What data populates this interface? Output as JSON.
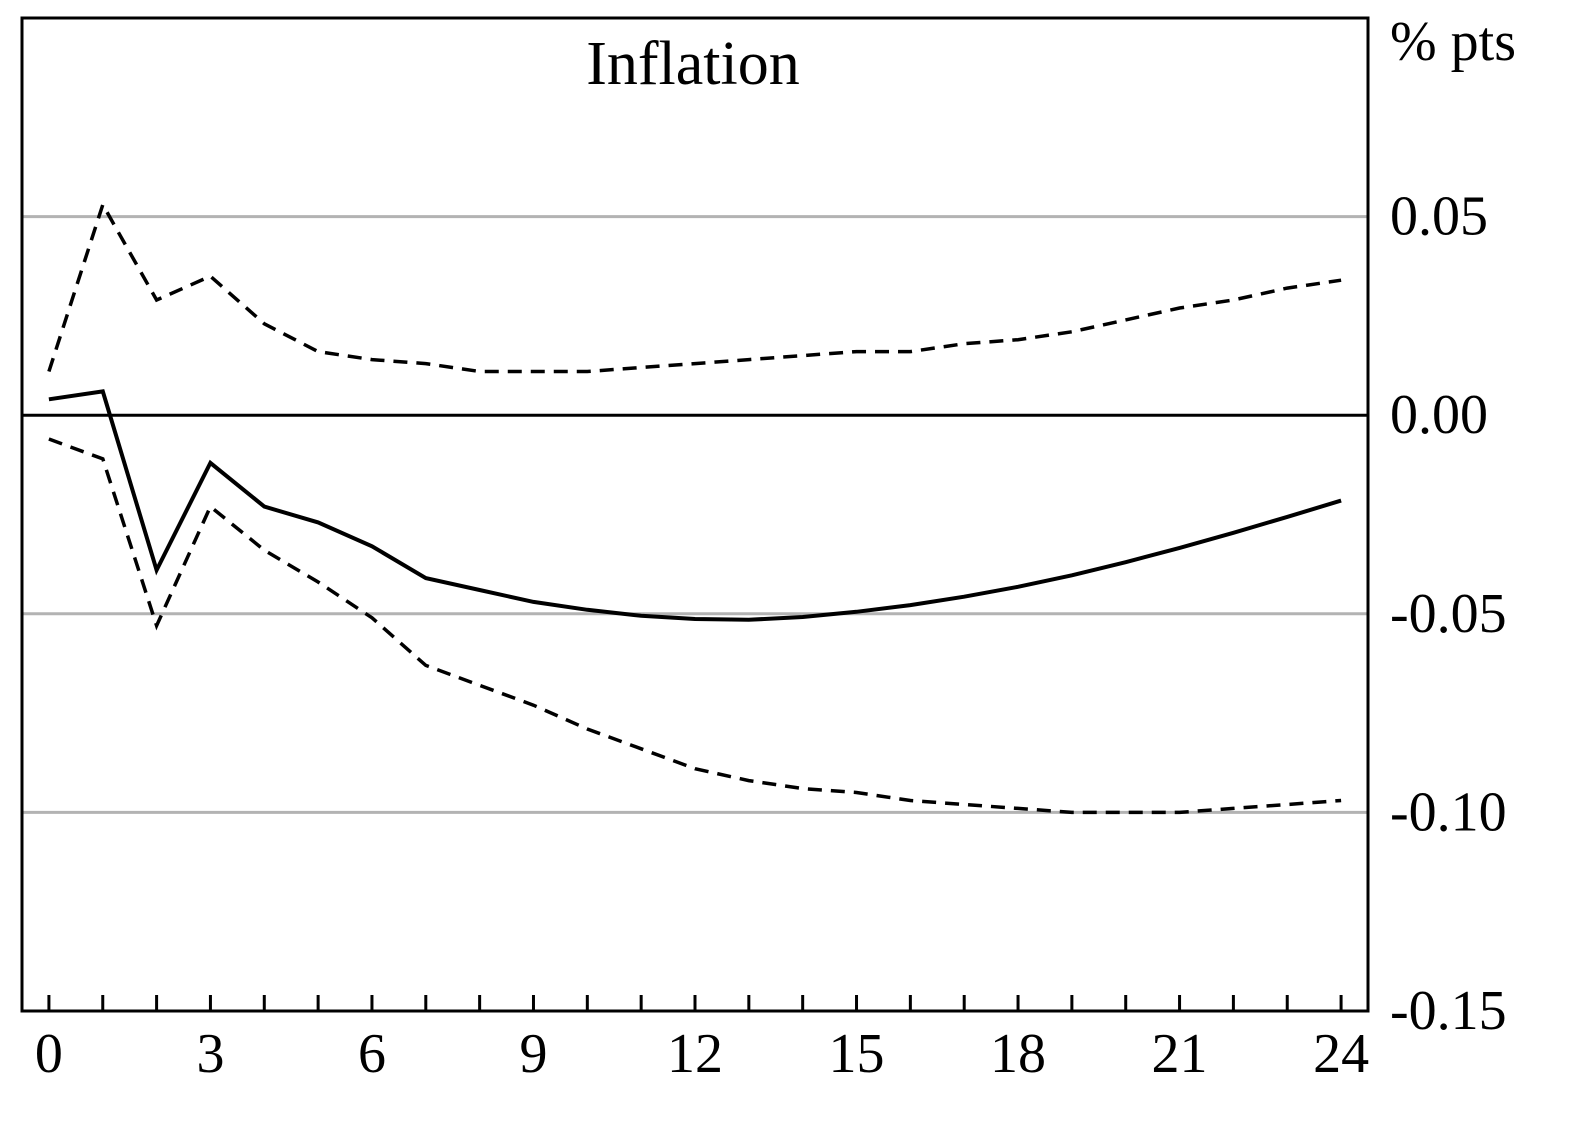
{
  "chart_data": {
    "type": "line",
    "title": "Inflation",
    "ylabel": "% pts",
    "xlabel": "",
    "xlim": [
      -0.5,
      24.5
    ],
    "ylim": [
      -0.15,
      0.1
    ],
    "grid": true,
    "legend": "none",
    "x_ticks": [
      {
        "value": 0,
        "label": "0"
      },
      {
        "value": 3,
        "label": "3"
      },
      {
        "value": 6,
        "label": "6"
      },
      {
        "value": 9,
        "label": "9"
      },
      {
        "value": 12,
        "label": "12"
      },
      {
        "value": 15,
        "label": "15"
      },
      {
        "value": 18,
        "label": "18"
      },
      {
        "value": 21,
        "label": "21"
      },
      {
        "value": 24,
        "label": "24"
      }
    ],
    "y_ticks": [
      {
        "value": 0.05,
        "label": "0.05"
      },
      {
        "value": 0.0,
        "label": "0.00"
      },
      {
        "value": -0.05,
        "label": "-0.05"
      },
      {
        "value": -0.1,
        "label": "-0.10"
      },
      {
        "value": -0.15,
        "label": "-0.15"
      }
    ],
    "x": [
      0,
      1,
      2,
      3,
      4,
      5,
      6,
      7,
      8,
      9,
      10,
      11,
      12,
      13,
      14,
      15,
      16,
      17,
      18,
      19,
      20,
      21,
      22,
      23,
      24
    ],
    "series": [
      {
        "style": "solid",
        "values": [
          0.004,
          0.006,
          -0.039,
          -0.012,
          -0.023,
          -0.027,
          -0.033,
          -0.041,
          -0.044,
          -0.047,
          -0.049,
          -0.0505,
          -0.0513,
          -0.0515,
          -0.0508,
          -0.0495,
          -0.0478,
          -0.0457,
          -0.0432,
          -0.0403,
          -0.037,
          -0.0334,
          -0.0296,
          -0.0256,
          -0.0215
        ]
      },
      {
        "style": "dashed",
        "values": [
          0.011,
          0.053,
          0.029,
          0.035,
          0.023,
          0.016,
          0.014,
          0.013,
          0.011,
          0.011,
          0.011,
          0.012,
          0.013,
          0.014,
          0.015,
          0.016,
          0.016,
          0.018,
          0.019,
          0.021,
          0.024,
          0.027,
          0.029,
          0.032,
          0.034
        ]
      },
      {
        "style": "dashed",
        "values": [
          -0.006,
          -0.011,
          -0.053,
          -0.023,
          -0.034,
          -0.042,
          -0.051,
          -0.063,
          -0.068,
          -0.073,
          -0.079,
          -0.084,
          -0.089,
          -0.092,
          -0.094,
          -0.095,
          -0.097,
          -0.098,
          -0.099,
          -0.1,
          -0.1,
          -0.1,
          -0.099,
          -0.098,
          -0.097
        ]
      }
    ],
    "colors": {
      "line": "#000000",
      "grid": "#b3b3b3",
      "zero_line": "#000000",
      "frame": "#000000"
    }
  }
}
